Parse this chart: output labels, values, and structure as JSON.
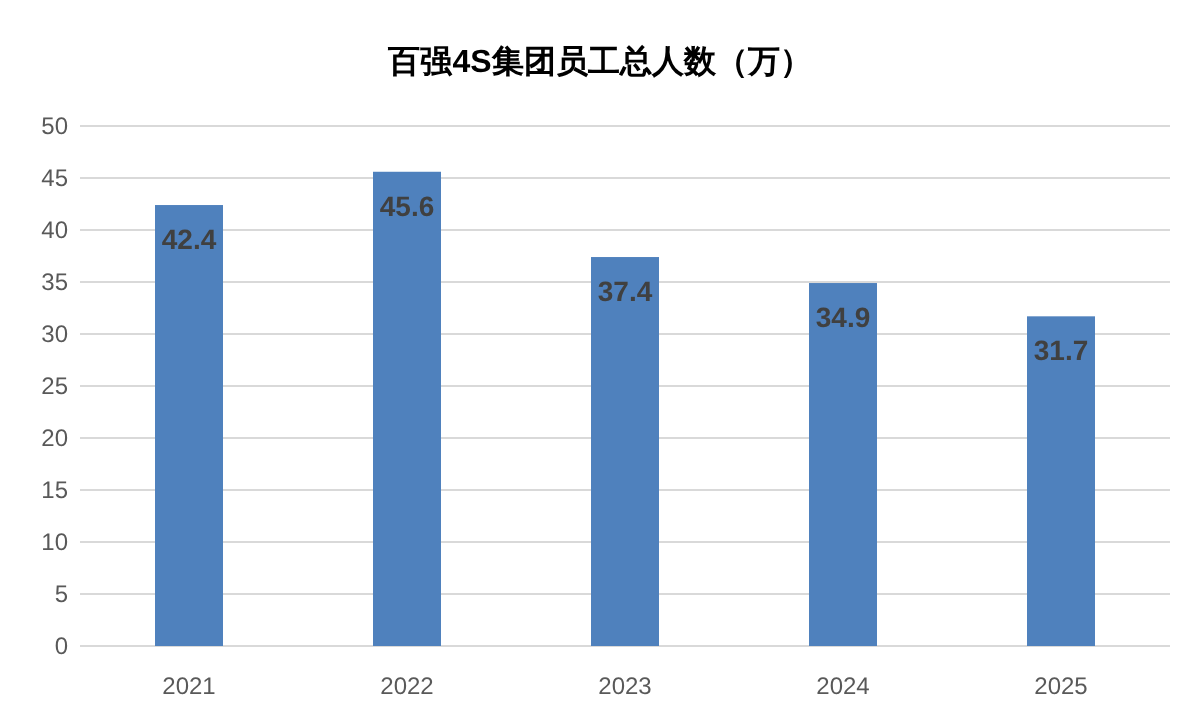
{
  "chart_data": {
    "type": "bar",
    "title": "百强4S集团员工总人数（万）",
    "categories": [
      "2021",
      "2022",
      "2023",
      "2024",
      "2025"
    ],
    "values": [
      42.4,
      45.6,
      37.4,
      34.9,
      31.7
    ],
    "color": "#4f81bd",
    "ylim": [
      0,
      50
    ],
    "yticks": [
      0,
      5,
      10,
      15,
      20,
      25,
      30,
      35,
      40,
      45,
      50
    ],
    "grid": "y",
    "data_labels": true
  }
}
